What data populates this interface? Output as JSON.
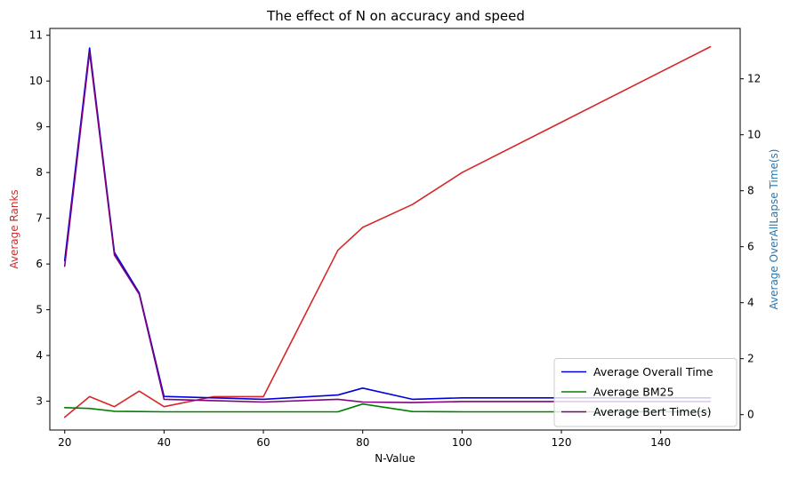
{
  "chart_data": {
    "type": "line",
    "title": "The effect of N on accuracy and speed",
    "xlabel": "N-Value",
    "ylabel_left": "Average Ranks",
    "ylabel_right": "Average OverAllLapse Time(s)",
    "xlim": [
      17,
      156
    ],
    "ylim_left": [
      2.37,
      11.15
    ],
    "ylim_right": [
      -0.55,
      13.8
    ],
    "x_ticks": [
      20,
      40,
      60,
      80,
      100,
      120,
      140
    ],
    "y_ticks_left": [
      3,
      4,
      5,
      6,
      7,
      8,
      9,
      10,
      11
    ],
    "y_ticks_right": [
      0,
      2,
      4,
      6,
      8,
      10,
      12
    ],
    "grid": false,
    "legend_position": "lower-right",
    "left_axis_color": "#d62728",
    "right_axis_color": "#1f77b4",
    "series": [
      {
        "name": "",
        "axis": "left",
        "color": "#d62728",
        "x": [
          20,
          25,
          30,
          35,
          40,
          50,
          60,
          75,
          80,
          90,
          100,
          150
        ],
        "y": [
          2.65,
          3.1,
          2.88,
          3.22,
          2.88,
          3.1,
          3.1,
          6.3,
          6.8,
          7.3,
          8.0,
          10.75
        ]
      },
      {
        "name": "Average Overall Time",
        "axis": "right",
        "color": "#0000dd",
        "x": [
          20,
          25,
          30,
          35,
          40,
          50,
          60,
          75,
          80,
          90,
          100,
          150
        ],
        "y": [
          5.5,
          13.1,
          5.8,
          4.35,
          0.65,
          0.6,
          0.55,
          0.7,
          0.95,
          0.55,
          0.6,
          0.6
        ]
      },
      {
        "name": "Average BM25",
        "axis": "right",
        "color": "#008000",
        "x": [
          20,
          25,
          30,
          35,
          40,
          50,
          60,
          75,
          80,
          90,
          100,
          150
        ],
        "y": [
          0.25,
          0.22,
          0.12,
          0.11,
          0.1,
          0.1,
          0.1,
          0.1,
          0.38,
          0.11,
          0.1,
          0.1
        ]
      },
      {
        "name": "Average Bert Time(s)",
        "axis": "right",
        "color": "#800080",
        "x": [
          20,
          25,
          30,
          35,
          40,
          50,
          60,
          75,
          80,
          90,
          100,
          150
        ],
        "y": [
          5.3,
          12.95,
          5.7,
          4.3,
          0.55,
          0.5,
          0.45,
          0.55,
          0.45,
          0.43,
          0.47,
          0.47
        ]
      }
    ]
  }
}
